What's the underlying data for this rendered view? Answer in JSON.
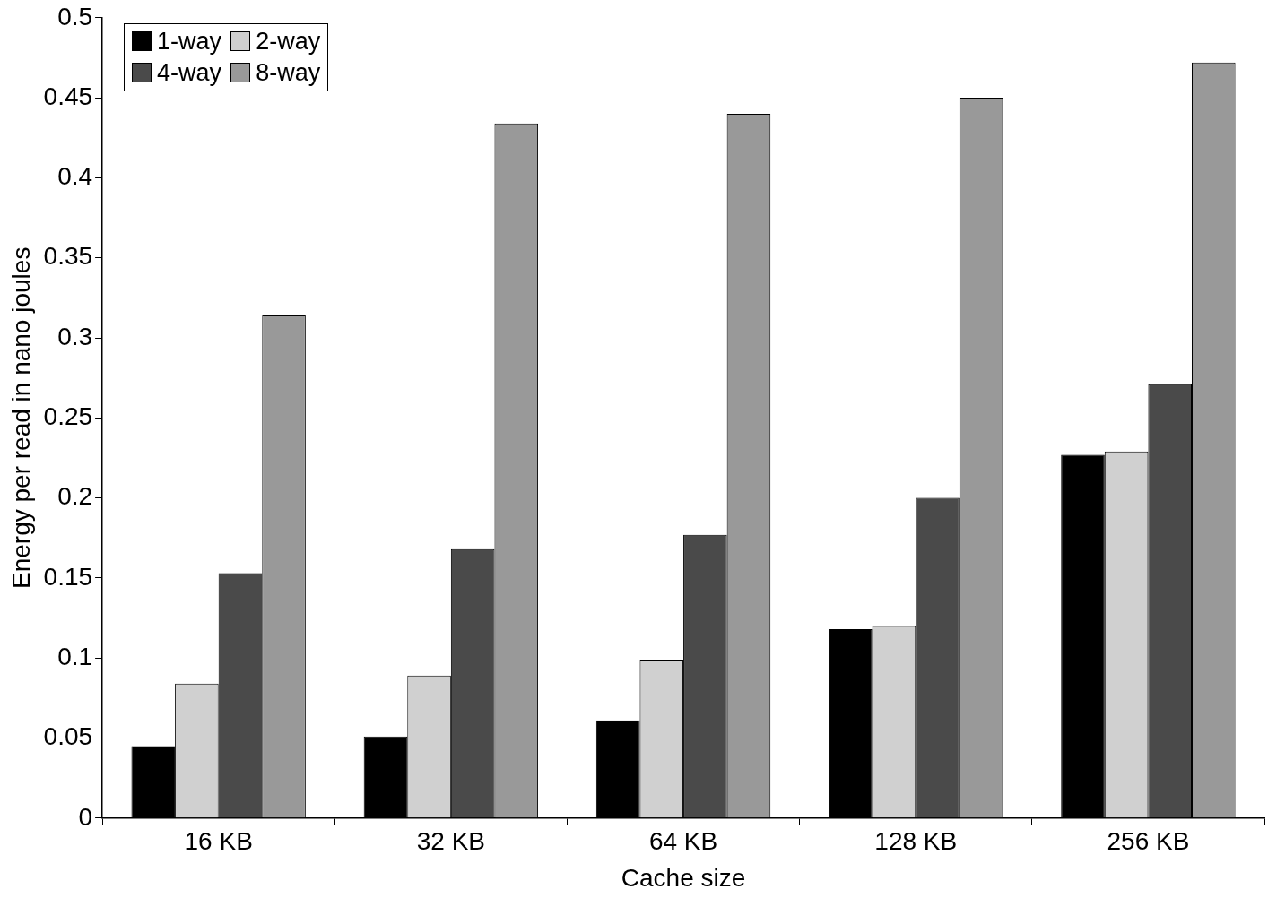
{
  "chart_data": {
    "type": "bar",
    "xlabel": "Cache size",
    "ylabel": "Energy per read in nano joules",
    "categories": [
      "16 KB",
      "32 KB",
      "64 KB",
      "128 KB",
      "256 KB"
    ],
    "series": [
      {
        "name": "1-way",
        "color": "#000000",
        "values": [
          0.045,
          0.051,
          0.061,
          0.118,
          0.227
        ]
      },
      {
        "name": "2-way",
        "color": "#d0d0d0",
        "values": [
          0.084,
          0.089,
          0.099,
          0.12,
          0.229
        ]
      },
      {
        "name": "4-way",
        "color": "#4a4a4a",
        "values": [
          0.153,
          0.168,
          0.177,
          0.2,
          0.271
        ]
      },
      {
        "name": "8-way",
        "color": "#999999",
        "values": [
          0.314,
          0.434,
          0.44,
          0.45,
          0.472
        ]
      }
    ],
    "ylim": [
      0,
      0.5
    ],
    "yticks": [
      0,
      0.05,
      0.1,
      0.15,
      0.2,
      0.25,
      0.3,
      0.35,
      0.4,
      0.45,
      0.5
    ],
    "grid": false,
    "legend": "top left"
  }
}
